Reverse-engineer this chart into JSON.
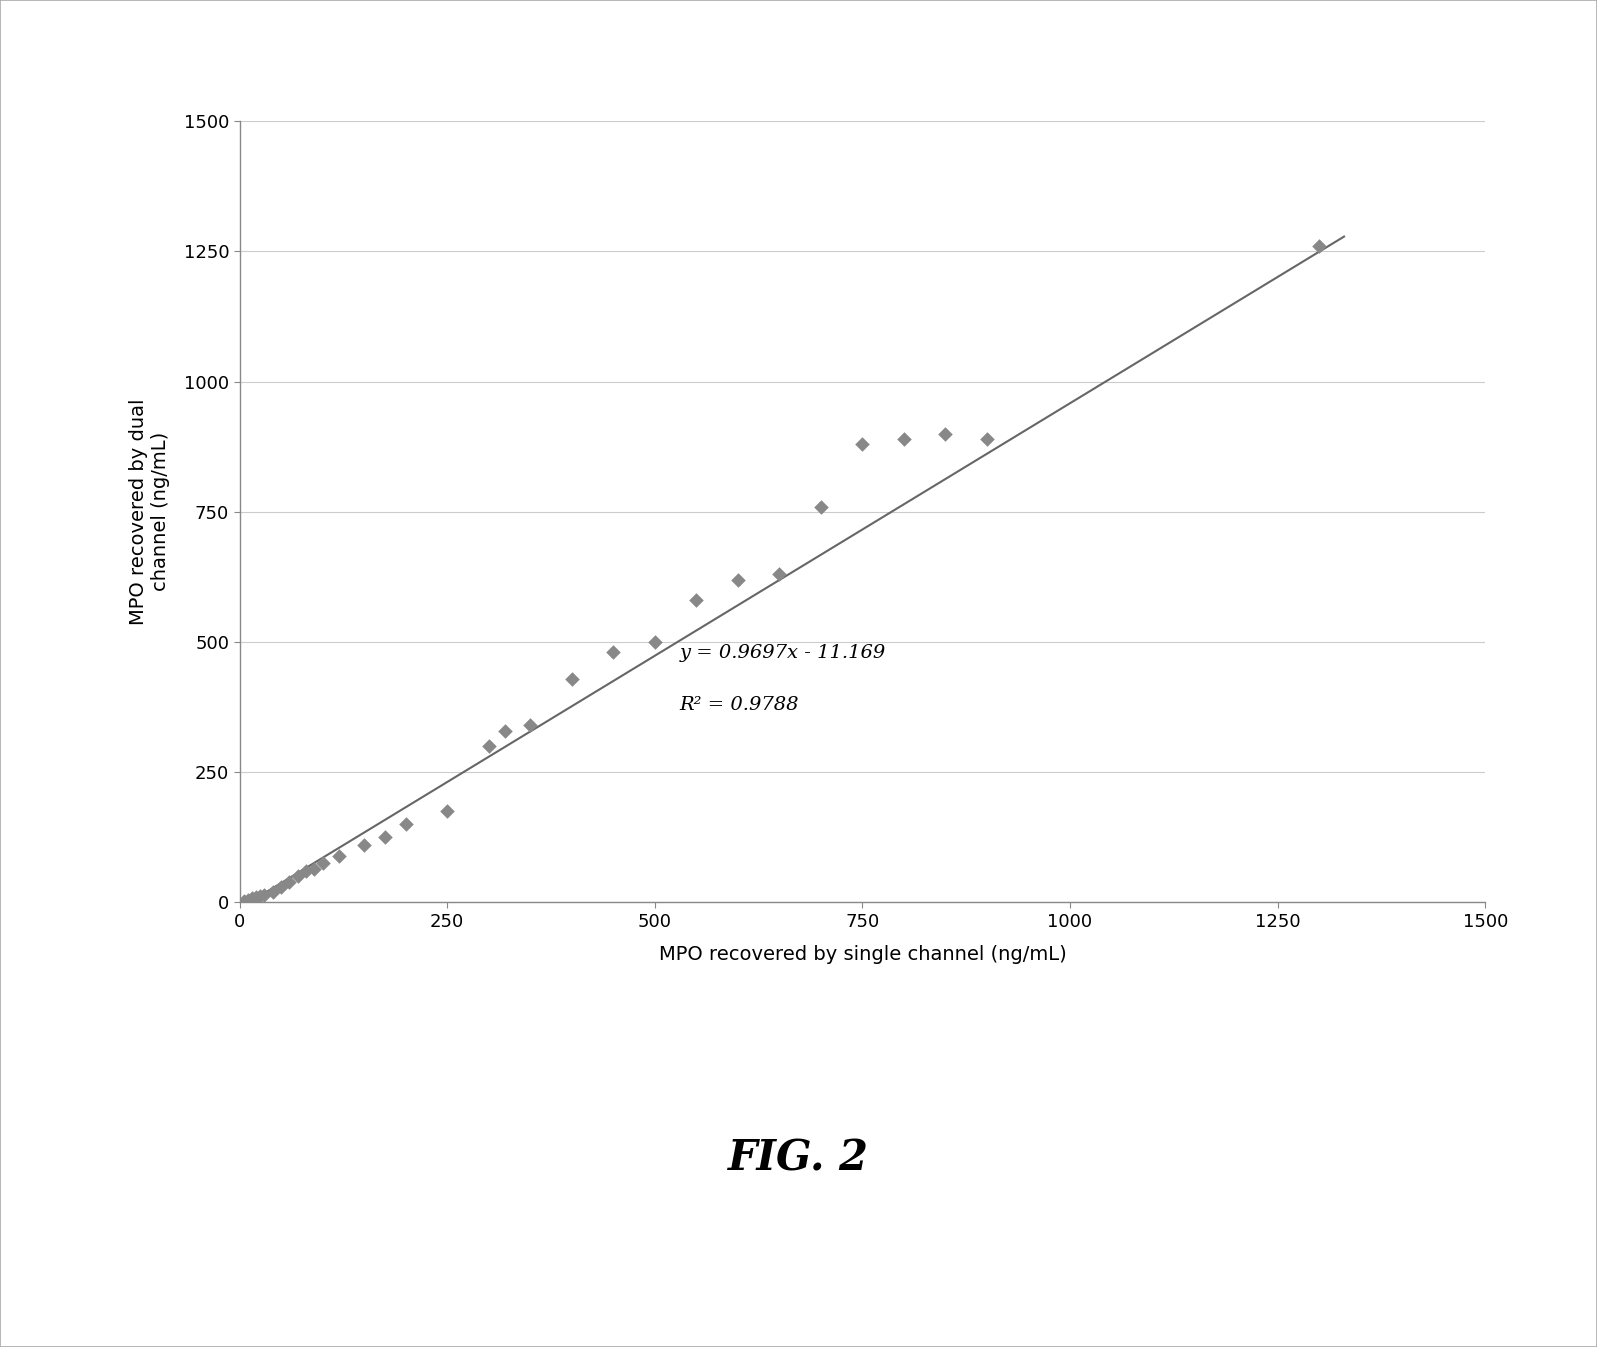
{
  "scatter_x": [
    5,
    10,
    15,
    20,
    25,
    30,
    40,
    50,
    60,
    70,
    80,
    90,
    100,
    120,
    150,
    175,
    200,
    250,
    300,
    320,
    350,
    400,
    450,
    500,
    550,
    600,
    650,
    700,
    750,
    800,
    850,
    900,
    1300
  ],
  "scatter_y": [
    2,
    5,
    8,
    10,
    12,
    15,
    20,
    30,
    40,
    50,
    60,
    65,
    75,
    90,
    110,
    125,
    150,
    175,
    300,
    330,
    340,
    430,
    480,
    500,
    580,
    620,
    630,
    760,
    880,
    890,
    900,
    890,
    1260
  ],
  "slope": 0.9697,
  "intercept": -11.169,
  "r_squared": 0.9788,
  "equation_text": "y = 0.9697x - 11.169",
  "r2_text": "R² = 0.9788",
  "xlabel": "MPO recovered by single channel (ng/mL)",
  "ylabel": "MPO recovered by dual\nchannel (ng/mL)",
  "xlim": [
    0,
    1500
  ],
  "ylim": [
    0,
    1500
  ],
  "xticks": [
    0,
    250,
    500,
    750,
    1000,
    1250,
    1500
  ],
  "yticks": [
    0,
    250,
    500,
    750,
    1000,
    1250,
    1500
  ],
  "marker_color": "#888888",
  "line_color": "#666666",
  "fig_title": "FIG. 2",
  "background_color": "#ffffff",
  "plot_bg_color": "#ffffff",
  "outer_border_color": "#aaaaaa",
  "grid_color": "#cccccc",
  "annotation_eq": "y = 0.9697x - 11.169",
  "annotation_r2": "R² = 0.9788"
}
